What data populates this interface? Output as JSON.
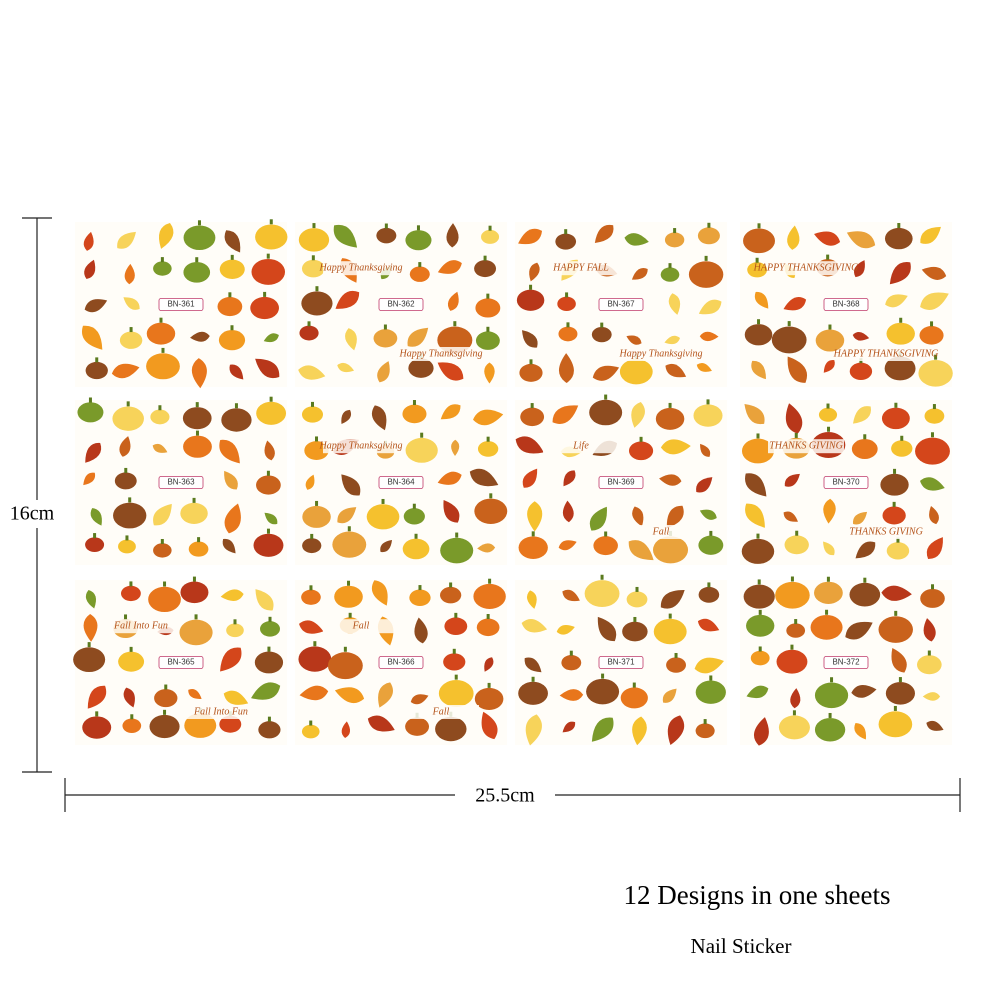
{
  "dimensions": {
    "height": "16cm",
    "width": "25.5cm"
  },
  "sheets": [
    {
      "code": "BN-361",
      "texts": []
    },
    {
      "code": "BN-362",
      "texts": [
        "Happy Thanksgiving",
        "Happy Thanksgiving"
      ]
    },
    {
      "code": "BN-367",
      "texts": [
        "HAPPY FALL",
        "Happy Thanksgiving"
      ]
    },
    {
      "code": "BN-368",
      "texts": [
        "HAPPY THANKSGIVING",
        "HAPPY THANKSGIVING"
      ]
    },
    {
      "code": "BN-363",
      "texts": []
    },
    {
      "code": "BN-364",
      "texts": [
        "Happy Thanksgiving"
      ]
    },
    {
      "code": "BN-369",
      "texts": [
        "Life",
        "Fall"
      ]
    },
    {
      "code": "BN-370",
      "texts": [
        "THANKS GIVING",
        "THANKS GIVING"
      ]
    },
    {
      "code": "BN-365",
      "texts": [
        "Fall Into Fun",
        "Fall Into Fun"
      ]
    },
    {
      "code": "BN-366",
      "texts": [
        "Fall",
        "Fall"
      ]
    },
    {
      "code": "BN-371",
      "texts": []
    },
    {
      "code": "BN-372",
      "texts": []
    }
  ],
  "caption": {
    "title": "12 Designs in one sheets",
    "subtitle": "Nail Sticker"
  }
}
